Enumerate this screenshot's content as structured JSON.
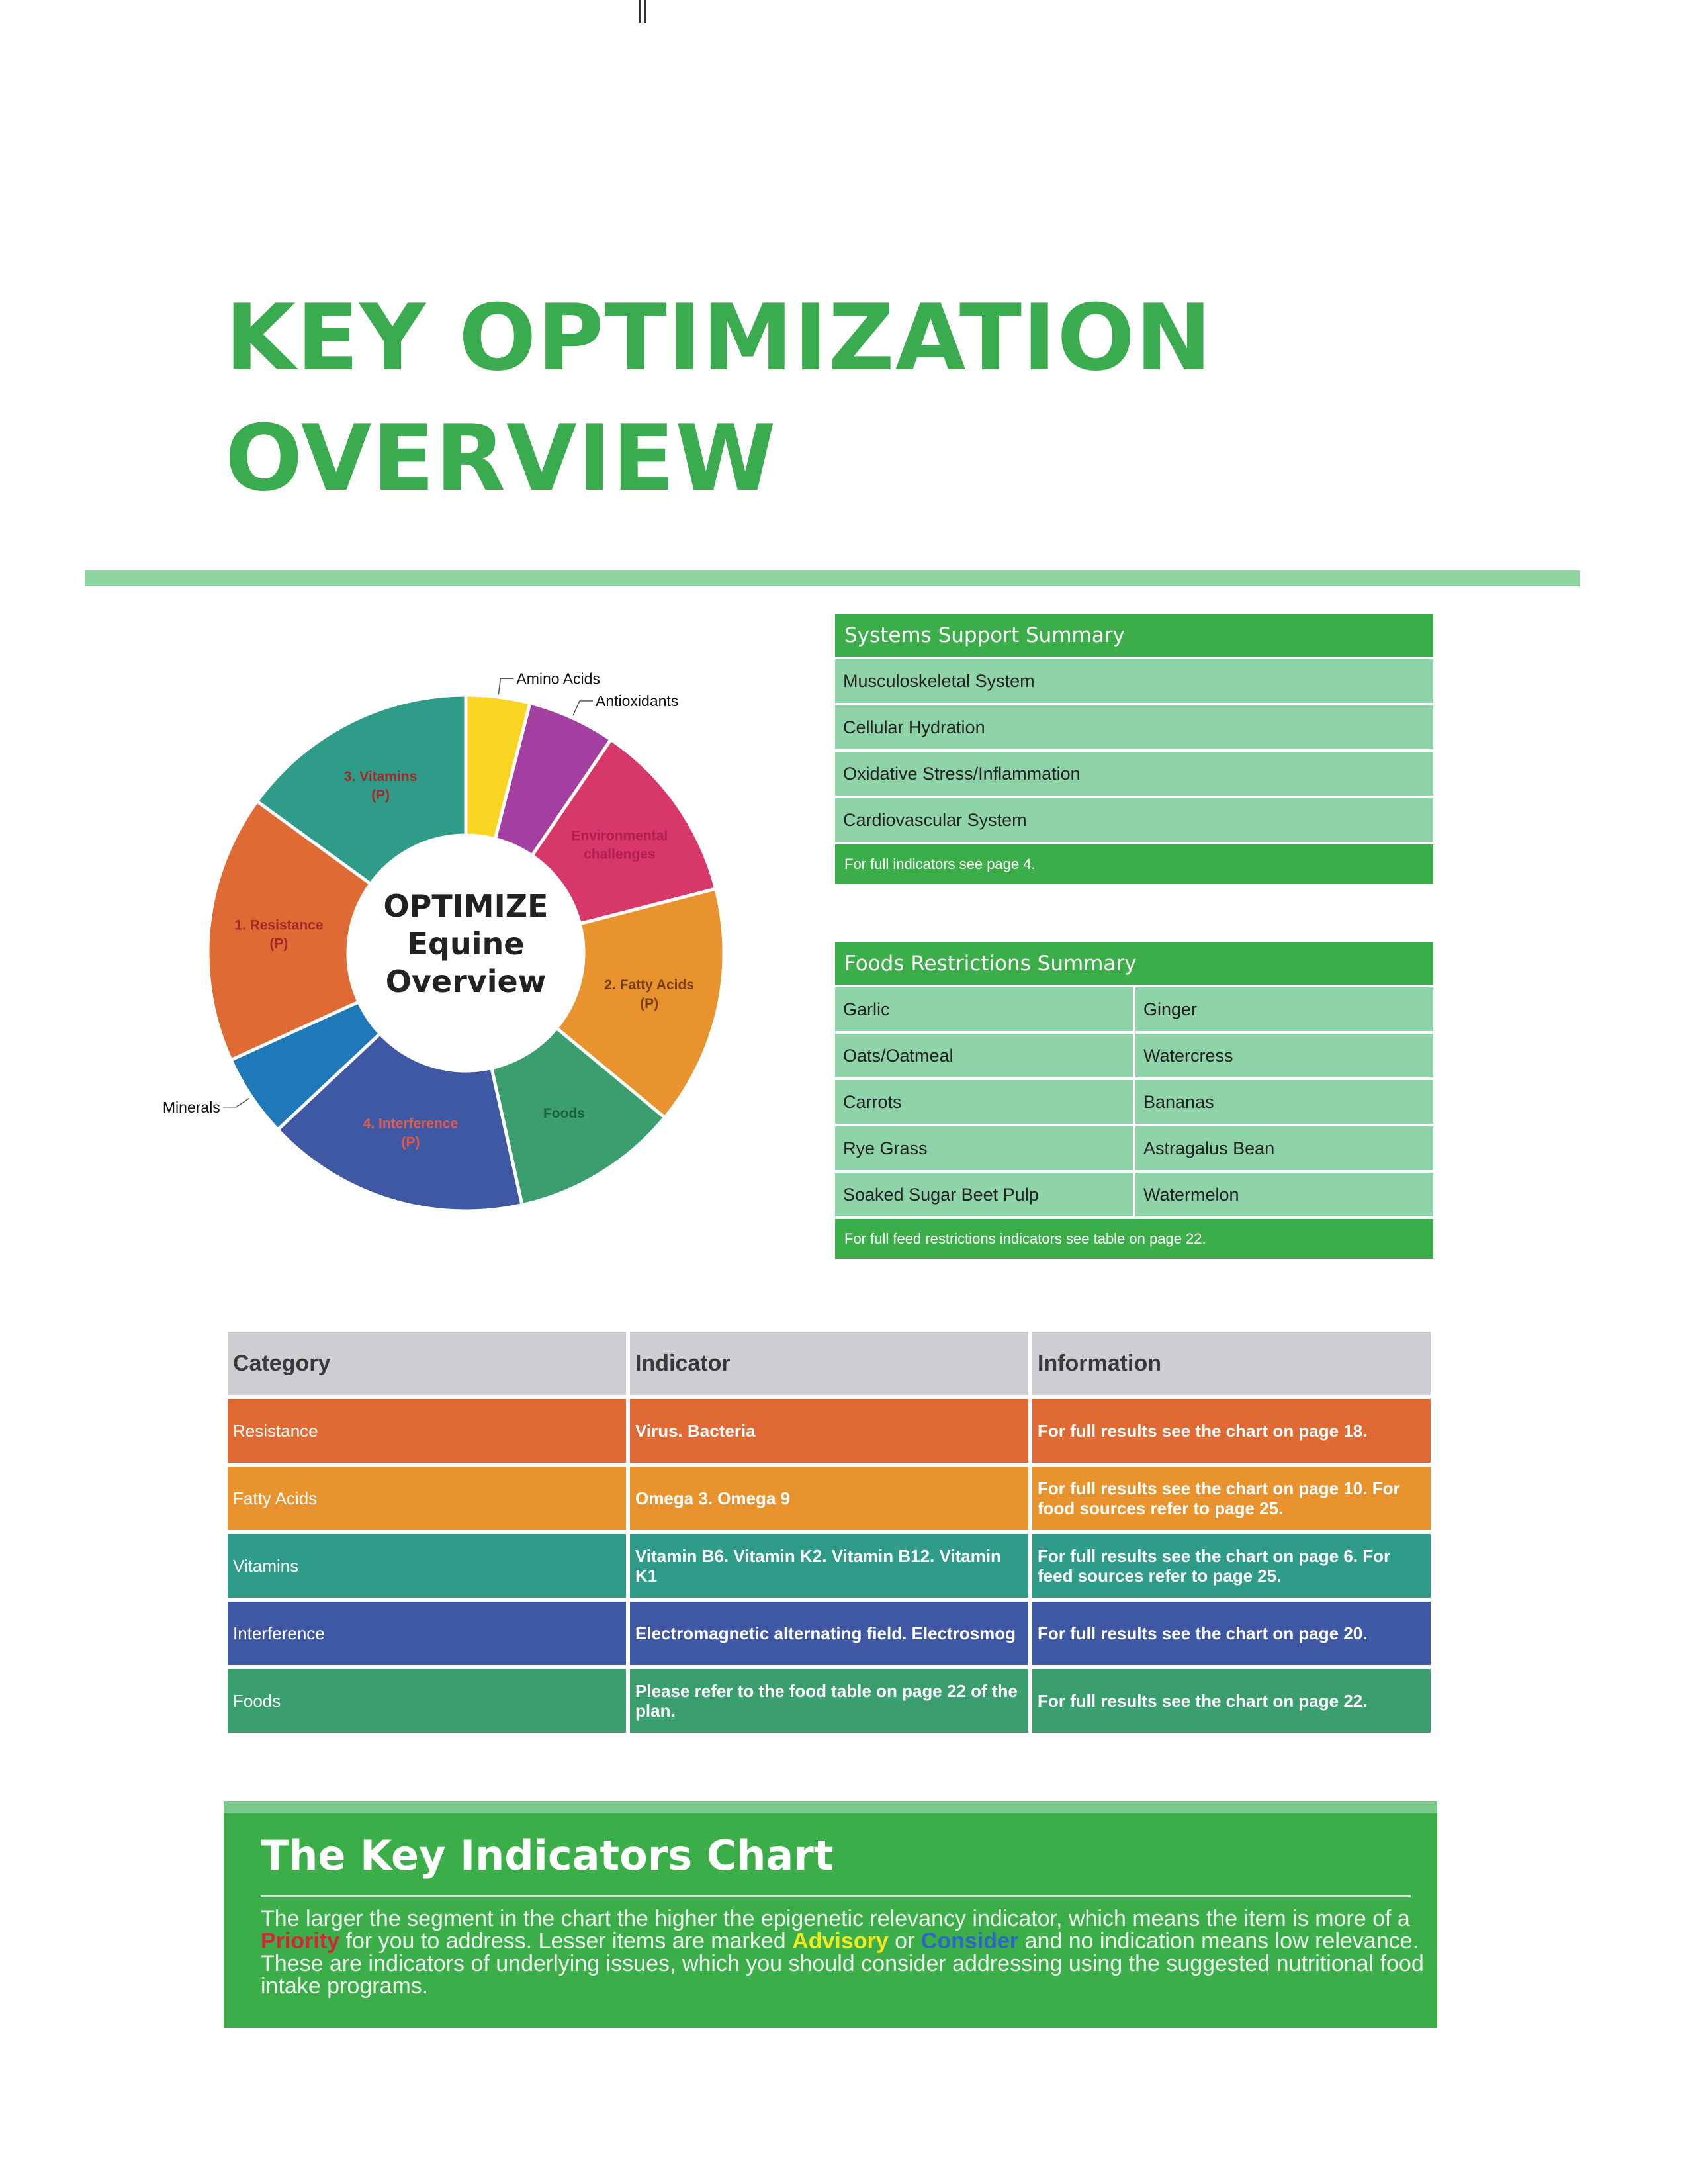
{
  "page": {
    "title_line1": "KEY OPTIMIZATION",
    "title_line2": "OVERVIEW"
  },
  "donut": {
    "center_line1": "OPTIMIZE",
    "center_line2": "Equine",
    "center_line3": "Overview",
    "segments": [
      {
        "label": "Amino Acids",
        "value": 0.04,
        "color": "#f7d521",
        "text_color": "#111111"
      },
      {
        "label": "Antioxidants",
        "value": 0.055,
        "color": "#a23fa0",
        "text_color": "#111111"
      },
      {
        "label": "Environmental challenges",
        "value": 0.115,
        "color": "#d8376a",
        "text_color": "#b01e52"
      },
      {
        "label": "2. Fatty Acids (P)",
        "value": 0.15,
        "color": "#e8932d",
        "text_color": "#7a3d0f"
      },
      {
        "label": "Foods",
        "value": 0.105,
        "color": "#3a9e6e",
        "text_color": "#1f5f40"
      },
      {
        "label": "4. Interference (P)",
        "value": 0.165,
        "color": "#3e58a3",
        "text_color": "#e25a4a"
      },
      {
        "label": "Minerals",
        "value": 0.052,
        "color": "#1f78b8",
        "text_color": "#111111"
      },
      {
        "label": "1. Resistance (P)",
        "value": 0.168,
        "color": "#e06a33",
        "text_color": "#a02a2a"
      },
      {
        "label": "3. Vitamins (P)",
        "value": 0.15,
        "color": "#2e9c88",
        "text_color": "#a02a2a"
      }
    ]
  },
  "systems": {
    "header": "Systems Support Summary",
    "rows": [
      "Musculoskeletal System",
      "Cellular Hydration",
      "Oxidative Stress/Inflammation",
      "Cardiovascular System"
    ],
    "footer": "For full indicators see page 4."
  },
  "foods": {
    "header": "Foods Restrictions Summary",
    "rows": [
      [
        "Garlic",
        "Ginger"
      ],
      [
        "Oats/Oatmeal",
        "Watercress"
      ],
      [
        "Carrots",
        "Bananas"
      ],
      [
        "Rye Grass",
        "Astragalus Bean"
      ],
      [
        "Soaked Sugar Beet Pulp",
        "Watermelon"
      ]
    ],
    "footer": "For full feed restrictions indicators see table on page 22."
  },
  "indicators_table": {
    "headers": [
      "Category",
      "Indicator",
      "Information"
    ],
    "rows": [
      {
        "category": "Resistance",
        "indicator": "Virus. Bacteria",
        "information": "For full results see the chart on page 18.",
        "color": "#e06a33"
      },
      {
        "category": "Fatty Acids",
        "indicator": "Omega 3. Omega 9",
        "information": "For full results see the chart on page 10. For food sources refer to page 25.",
        "color": "#e8932d"
      },
      {
        "category": "Vitamins",
        "indicator": "Vitamin B6. Vitamin K2. Vitamin B12. Vitamin K1",
        "information": "For full results see the chart on page 6. For feed sources refer to page 25.",
        "color": "#2e9c88"
      },
      {
        "category": "Interference",
        "indicator": "Electromagnetic alternating field. Electrosmog",
        "information": "For full results see the chart on page 20.",
        "color": "#3e58a3"
      },
      {
        "category": "Foods",
        "indicator": "Please refer to the food table on page 22 of the plan.",
        "information": "For full results see the chart on page 22.",
        "color": "#3a9e6e"
      }
    ]
  },
  "key_chart": {
    "title": "The Key Indicators Chart",
    "text_1": "The larger the segment in the chart the higher the epigenetic relevancy indicator, which means the item is more of a",
    "priority": "Priority",
    "text_2": "for you to address. Lesser items are marked",
    "advisory": "Advisory",
    "text_3": "or",
    "consider": "Consider",
    "text_4": "and no indication means low relevance. These are indicators of underlying issues, which you should consider addressing using the suggested nutritional food intake programs."
  }
}
